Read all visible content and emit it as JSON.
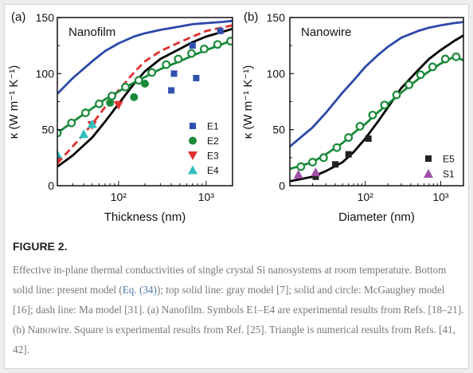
{
  "figure_label": "FIGURE 2.",
  "caption": {
    "part1": "Effective in-plane thermal conductivities of single crystal Si nanosystems at room temperature. Bottom solid line: present model (",
    "ref_eq": "Eq. (34)",
    "part2": "); top solid line: gray model [7]; solid and circle: McGaughey model [16]; dash line: Ma model [31]. (a) Nanofilm. Symbols E1–E4 are experimental results from Refs. [18–21]. (b) Nanowire. Square is experimental results from Ref. [25]. Triangle is numerical results from Refs. [41, 42]."
  },
  "chart_data": [
    {
      "type": "line",
      "panel_label": "(a)",
      "inset_title": "Nanofilm",
      "xlabel": "Thickness (nm)",
      "ylabel": "κ (W m⁻¹ K⁻¹)",
      "x_scale": "log",
      "xlim": [
        20,
        2000
      ],
      "ylim": [
        0,
        150
      ],
      "x_ticks": [
        100,
        1000
      ],
      "x_tick_labels": [
        "10²",
        "10³"
      ],
      "y_ticks": [
        0,
        50,
        100,
        150
      ],
      "colors": {
        "gray": "#2b48a8",
        "present": "#000000",
        "mcgaughey": "#1a8a3a",
        "ma": "#e03030",
        "E1": "#3050b0",
        "E2": "#1a8a3a",
        "E3": "#e03030",
        "E4": "#30c0c0"
      },
      "lines": [
        {
          "id": "gray",
          "style": "solid",
          "x": [
            20,
            30,
            50,
            70,
            100,
            150,
            200,
            300,
            500,
            700,
            1000,
            1500,
            2000
          ],
          "y": [
            82,
            96,
            111,
            120,
            127,
            133,
            136,
            139,
            142,
            144,
            145,
            146,
            147
          ]
        },
        {
          "id": "present",
          "style": "solid",
          "x": [
            20,
            30,
            50,
            70,
            100,
            150,
            200,
            300,
            500,
            700,
            1000,
            1500,
            2000
          ],
          "y": [
            17,
            27,
            43,
            57,
            73,
            91,
            102,
            113,
            122,
            128,
            133,
            137,
            140
          ]
        },
        {
          "id": "ma",
          "style": "dash",
          "x": [
            20,
            30,
            50,
            70,
            100,
            150,
            200,
            300,
            500,
            700,
            1000,
            1500,
            2000
          ],
          "y": [
            20,
            35,
            55,
            70,
            85,
            101,
            111,
            120,
            128,
            133,
            138,
            141,
            143
          ]
        },
        {
          "id": "mcgaughey",
          "style": "solid-circle",
          "x": [
            20,
            30,
            50,
            70,
            100,
            150,
            200,
            300,
            500,
            700,
            1000,
            1500,
            2000
          ],
          "y": [
            47,
            57,
            69,
            77,
            84,
            92,
            97,
            104,
            111,
            116,
            121,
            126,
            130
          ],
          "marker_x": [
            20,
            29,
            42,
            60,
            84,
            120,
            170,
            240,
            350,
            480,
            680,
            950,
            1350,
            1900
          ],
          "marker_y": [
            47,
            56,
            65,
            73,
            80,
            88,
            94,
            101,
            108,
            113,
            118,
            122,
            126,
            129
          ]
        }
      ],
      "series": [
        {
          "name": "E1",
          "marker": "square",
          "x": [
            400,
            430,
            700,
            770,
            1450
          ],
          "y": [
            85,
            100,
            125,
            96,
            138
          ]
        },
        {
          "name": "E2",
          "marker": "circle",
          "x": [
            80,
            150,
            200
          ],
          "y": [
            74,
            79,
            91
          ]
        },
        {
          "name": "E3",
          "marker": "triangle-down",
          "x": [
            20,
            50,
            100
          ],
          "y": [
            22,
            54,
            72
          ]
        },
        {
          "name": "E4",
          "marker": "triangle-up",
          "x": [
            20,
            40,
            50
          ],
          "y": [
            28,
            46,
            55
          ]
        }
      ]
    },
    {
      "type": "line",
      "panel_label": "(b)",
      "inset_title": "Nanowire",
      "xlabel": "Diameter (nm)",
      "ylabel": "κ (W m⁻¹ K⁻¹)",
      "x_scale": "log",
      "xlim": [
        10,
        2000
      ],
      "ylim": [
        0,
        150
      ],
      "x_ticks": [
        100,
        1000
      ],
      "x_tick_labels": [
        "10²",
        "10³"
      ],
      "y_ticks": [
        0,
        50,
        100,
        150
      ],
      "colors": {
        "gray": "#2b48a8",
        "present": "#000000",
        "mcgaughey": "#1a8a3a",
        "E5": "#222222",
        "S1": "#a050a8"
      },
      "lines": [
        {
          "id": "gray",
          "style": "solid",
          "x": [
            10,
            20,
            30,
            50,
            70,
            100,
            150,
            200,
            300,
            500,
            700,
            1000,
            1500,
            2000
          ],
          "y": [
            35,
            52,
            65,
            83,
            94,
            106,
            117,
            124,
            132,
            138,
            141,
            143,
            145,
            146
          ]
        },
        {
          "id": "present",
          "style": "solid",
          "x": [
            10,
            20,
            30,
            50,
            70,
            100,
            150,
            200,
            300,
            500,
            700,
            1000,
            1500,
            2000
          ],
          "y": [
            4,
            8,
            13,
            21,
            30,
            42,
            58,
            70,
            87,
            103,
            113,
            121,
            129,
            134
          ]
        },
        {
          "id": "mcgaughey",
          "style": "solid-circle",
          "x": [
            10,
            20,
            30,
            50,
            70,
            100,
            150,
            200,
            300,
            500,
            700,
            1000,
            1500,
            2000
          ],
          "y": [
            15,
            21,
            28,
            38,
            47,
            55,
            66,
            73,
            83,
            95,
            102,
            109,
            115,
            112
          ],
          "marker_x": [
            14,
            20,
            28,
            42,
            60,
            85,
            125,
            180,
            260,
            380,
            540,
            780,
            1150,
            1600
          ],
          "marker_y": [
            17,
            21,
            25,
            34,
            43,
            53,
            63,
            72,
            81,
            90,
            99,
            106,
            113,
            115
          ]
        }
      ],
      "series": [
        {
          "name": "E5",
          "marker": "square",
          "x": [
            22,
            40,
            60,
            110
          ],
          "y": [
            8,
            19,
            28,
            42
          ]
        },
        {
          "name": "S1",
          "marker": "triangle-up",
          "x": [
            13,
            22
          ],
          "y": [
            10,
            12
          ]
        }
      ]
    }
  ]
}
